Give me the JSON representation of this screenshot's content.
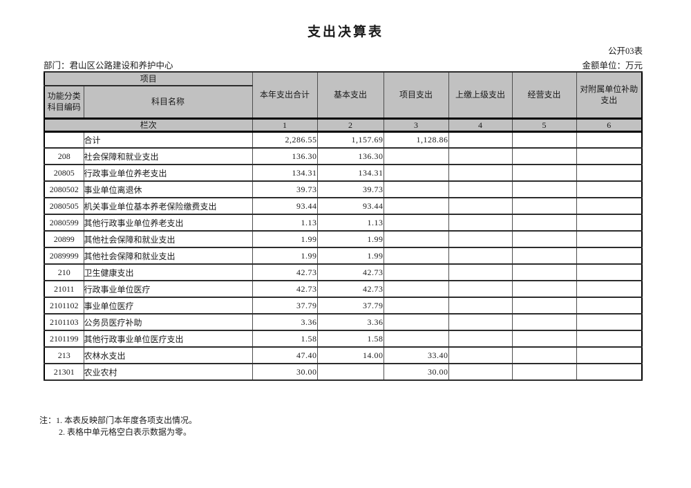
{
  "page": {
    "title": "支出决算表",
    "table_code": "公开03表",
    "department": "部门：君山区公路建设和养护中心",
    "unit": "金额单位：万元"
  },
  "table": {
    "project_header": "项目",
    "code_header": "功能分类科目编码",
    "name_header": "科目名称",
    "column_headers": [
      "本年支出合计",
      "基本支出",
      "项目支出",
      "上缴上级支出",
      "经营支出",
      "对附属单位补助支出"
    ],
    "lanci_label": "栏次",
    "lanci_numbers": [
      "1",
      "2",
      "3",
      "4",
      "5",
      "6"
    ],
    "rows": [
      {
        "code": "",
        "name": "合计",
        "values": [
          "2,286.55",
          "1,157.69",
          "1,128.86",
          "",
          "",
          ""
        ]
      },
      {
        "code": "208",
        "name": "社会保障和就业支出",
        "values": [
          "136.30",
          "136.30",
          "",
          "",
          "",
          ""
        ]
      },
      {
        "code": "20805",
        "name": "行政事业单位养老支出",
        "values": [
          "134.31",
          "134.31",
          "",
          "",
          "",
          ""
        ]
      },
      {
        "code": "2080502",
        "name": "事业单位离退休",
        "values": [
          "39.73",
          "39.73",
          "",
          "",
          "",
          ""
        ]
      },
      {
        "code": "2080505",
        "name": "机关事业单位基本养老保险缴费支出",
        "values": [
          "93.44",
          "93.44",
          "",
          "",
          "",
          ""
        ]
      },
      {
        "code": "2080599",
        "name": "其他行政事业单位养老支出",
        "values": [
          "1.13",
          "1.13",
          "",
          "",
          "",
          ""
        ]
      },
      {
        "code": "20899",
        "name": "其他社会保障和就业支出",
        "values": [
          "1.99",
          "1.99",
          "",
          "",
          "",
          ""
        ]
      },
      {
        "code": "2089999",
        "name": "其他社会保障和就业支出",
        "values": [
          "1.99",
          "1.99",
          "",
          "",
          "",
          ""
        ]
      },
      {
        "code": "210",
        "name": "卫生健康支出",
        "values": [
          "42.73",
          "42.73",
          "",
          "",
          "",
          ""
        ]
      },
      {
        "code": "21011",
        "name": "行政事业单位医疗",
        "values": [
          "42.73",
          "42.73",
          "",
          "",
          "",
          ""
        ]
      },
      {
        "code": "2101102",
        "name": "事业单位医疗",
        "values": [
          "37.79",
          "37.79",
          "",
          "",
          "",
          ""
        ]
      },
      {
        "code": "2101103",
        "name": "公务员医疗补助",
        "values": [
          "3.36",
          "3.36",
          "",
          "",
          "",
          ""
        ]
      },
      {
        "code": "2101199",
        "name": "其他行政事业单位医疗支出",
        "values": [
          "1.58",
          "1.58",
          "",
          "",
          "",
          ""
        ]
      },
      {
        "code": "213",
        "name": "农林水支出",
        "values": [
          "47.40",
          "14.00",
          "33.40",
          "",
          "",
          ""
        ]
      },
      {
        "code": "21301",
        "name": "农业农村",
        "values": [
          "30.00",
          "",
          "30.00",
          "",
          "",
          ""
        ]
      }
    ]
  },
  "notes": {
    "line1": "注：1. 本表反映部门本年度各项支出情况。",
    "line2": "2. 表格中单元格空白表示数据为零。"
  },
  "colors": {
    "header_background": "#c1c1c1",
    "border": "#000000",
    "text": "#1a1a1a"
  }
}
